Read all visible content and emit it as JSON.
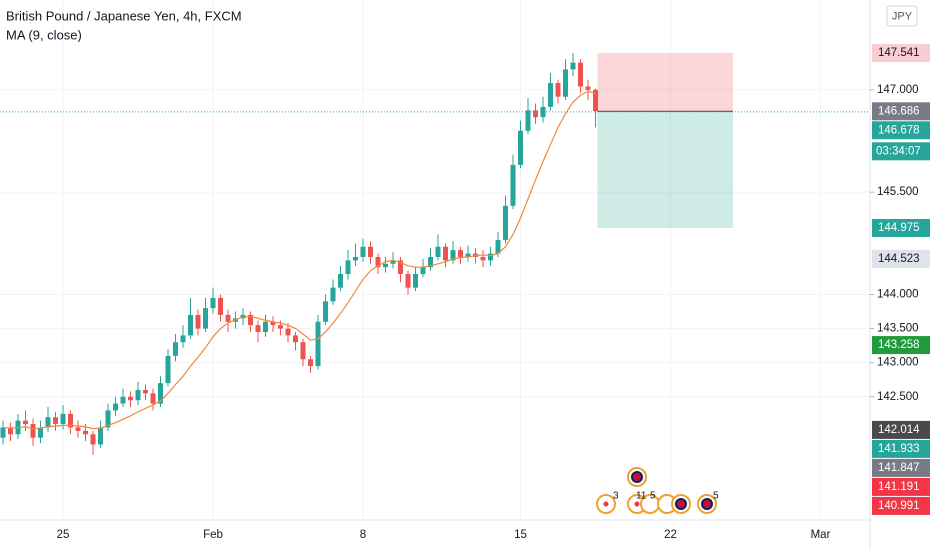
{
  "chart_data": {
    "type": "candlestick",
    "title": "British Pound / Japanese Yen, 4h, FXCM",
    "currency": "JPY",
    "up_color": "#26a69a",
    "down_color": "#ef5350",
    "grid": true,
    "ylim": [
      140.693,
      148.318
    ],
    "yticks": [
      {
        "value": 142.5,
        "label": "142.500"
      },
      {
        "value": 143,
        "label": "143.000"
      },
      {
        "value": 143.5,
        "label": "143.500"
      },
      {
        "value": 144,
        "label": "144.000"
      },
      {
        "value": 145.5,
        "label": "145.500"
      },
      {
        "value": 147,
        "label": "147.000"
      }
    ],
    "categories": [
      null,
      null,
      null,
      null,
      null,
      null,
      null,
      null,
      "25",
      null,
      null,
      null,
      null,
      null,
      null,
      null,
      null,
      null,
      null,
      null,
      null,
      null,
      null,
      null,
      null,
      null,
      null,
      null,
      "Feb",
      null,
      null,
      null,
      null,
      null,
      null,
      null,
      null,
      null,
      null,
      null,
      null,
      null,
      null,
      null,
      null,
      null,
      null,
      null,
      "8",
      null,
      null,
      null,
      null,
      null,
      null,
      null,
      null,
      null,
      null,
      null,
      null,
      null,
      null,
      null,
      null,
      null,
      null,
      null,
      null,
      "15",
      null,
      null,
      null,
      null,
      null,
      null,
      null,
      null,
      null,
      null,
      null,
      null,
      null,
      null,
      null,
      null,
      null,
      null,
      null,
      "22",
      null,
      null,
      null,
      null,
      null,
      null,
      null,
      null,
      null,
      null,
      null,
      null,
      null,
      null,
      null,
      null,
      null,
      null,
      null,
      "Mar",
      null,
      null,
      null,
      null,
      null,
      null
    ],
    "open": [
      141.9,
      142.05,
      141.95,
      142.15,
      142.1,
      141.9,
      142.05,
      142.2,
      142.1,
      142.25,
      142.05,
      142.0,
      141.95,
      141.8,
      142.05,
      142.3,
      142.4,
      142.5,
      142.45,
      142.6,
      142.55,
      142.4,
      142.7,
      143.1,
      143.3,
      143.4,
      143.7,
      143.5,
      143.8,
      143.95,
      143.7,
      143.6,
      143.65,
      143.7,
      143.55,
      143.45,
      143.6,
      143.55,
      143.5,
      143.4,
      143.3,
      143.05,
      142.95,
      143.6,
      143.9,
      144.1,
      144.3,
      144.5,
      144.55,
      144.7,
      144.55,
      144.4,
      144.45,
      144.5,
      144.3,
      144.1,
      144.3,
      144.4,
      144.55,
      144.7,
      144.5,
      144.65,
      144.55,
      144.6,
      144.55,
      144.5,
      144.6,
      144.8,
      145.3,
      145.9,
      146.4,
      146.7,
      146.6,
      146.75,
      147.1,
      146.9,
      147.3,
      147.4,
      147.05,
      147.0,
      null,
      null,
      null,
      null,
      null,
      null,
      null,
      null,
      null,
      null,
      null,
      null,
      null,
      null,
      null,
      null,
      null,
      null,
      null,
      null,
      null,
      null,
      null,
      null,
      null,
      null,
      null,
      null,
      null,
      null,
      null,
      null,
      null,
      null,
      null,
      null
    ],
    "high": [
      142.15,
      142.12,
      142.25,
      142.3,
      142.18,
      142.15,
      142.35,
      142.28,
      142.38,
      142.3,
      142.15,
      142.1,
      142.0,
      142.15,
      142.4,
      142.5,
      142.62,
      142.58,
      142.72,
      142.68,
      142.62,
      142.8,
      143.2,
      143.42,
      143.55,
      143.95,
      143.78,
      143.95,
      144.1,
      144.0,
      143.78,
      143.75,
      143.8,
      143.75,
      143.62,
      143.7,
      143.68,
      143.62,
      143.58,
      143.45,
      143.35,
      143.1,
      143.7,
      144.0,
      144.22,
      144.42,
      144.65,
      144.75,
      144.82,
      144.78,
      144.6,
      144.55,
      144.62,
      144.55,
      144.35,
      144.4,
      144.52,
      144.68,
      144.88,
      144.75,
      144.78,
      144.7,
      144.72,
      144.68,
      144.65,
      144.7,
      144.92,
      145.45,
      146.05,
      146.55,
      146.88,
      146.8,
      146.9,
      147.25,
      147.15,
      147.45,
      147.54,
      147.45,
      147.15,
      147.02,
      null,
      null,
      null,
      null,
      null,
      null,
      null,
      null,
      null,
      null,
      null,
      null,
      null,
      null,
      null,
      null,
      null,
      null,
      null,
      null,
      null,
      null,
      null,
      null,
      null,
      null,
      null,
      null,
      null,
      null,
      null,
      null,
      null,
      null,
      null,
      null
    ],
    "low": [
      141.8,
      141.85,
      141.88,
      142.0,
      141.78,
      141.82,
      141.98,
      142.0,
      142.02,
      141.95,
      141.9,
      141.85,
      141.65,
      141.75,
      142.0,
      142.22,
      142.35,
      142.35,
      142.38,
      142.45,
      142.3,
      142.35,
      142.65,
      143.02,
      143.22,
      143.35,
      143.4,
      143.45,
      143.72,
      143.6,
      143.45,
      143.5,
      143.55,
      143.45,
      143.3,
      143.38,
      143.45,
      143.4,
      143.3,
      143.18,
      142.95,
      142.85,
      142.9,
      143.55,
      143.85,
      144.05,
      144.22,
      144.42,
      144.48,
      144.45,
      144.3,
      144.32,
      144.38,
      144.18,
      144.0,
      144.05,
      144.25,
      144.35,
      144.5,
      144.4,
      144.45,
      144.45,
      144.48,
      144.45,
      144.4,
      144.42,
      144.55,
      144.75,
      145.25,
      145.85,
      146.35,
      146.5,
      146.52,
      146.7,
      146.8,
      146.85,
      147.2,
      146.95,
      146.85,
      146.45,
      null,
      null,
      null,
      null,
      null,
      null,
      null,
      null,
      null,
      null,
      null,
      null,
      null,
      null,
      null,
      null,
      null,
      null,
      null,
      null,
      null,
      null,
      null,
      null,
      null,
      null,
      null,
      null,
      null,
      null,
      null,
      null,
      null,
      null,
      null,
      null
    ],
    "close": [
      142.05,
      141.95,
      142.15,
      142.1,
      141.9,
      142.05,
      142.2,
      142.1,
      142.25,
      142.05,
      142.0,
      141.95,
      141.8,
      142.05,
      142.3,
      142.4,
      142.5,
      142.45,
      142.6,
      142.55,
      142.4,
      142.7,
      143.1,
      143.3,
      143.4,
      143.7,
      143.5,
      143.8,
      143.95,
      143.7,
      143.6,
      143.65,
      143.7,
      143.55,
      143.45,
      143.6,
      143.55,
      143.5,
      143.4,
      143.3,
      143.05,
      142.95,
      143.6,
      143.9,
      144.1,
      144.3,
      144.5,
      144.55,
      144.7,
      144.55,
      144.4,
      144.45,
      144.5,
      144.3,
      144.1,
      144.3,
      144.4,
      144.55,
      144.7,
      144.5,
      144.65,
      144.55,
      144.6,
      144.55,
      144.5,
      144.6,
      144.8,
      145.3,
      145.9,
      146.4,
      146.7,
      146.6,
      146.75,
      147.1,
      146.9,
      147.3,
      147.4,
      147.05,
      147.0,
      146.69,
      null,
      null,
      null,
      null,
      null,
      null,
      null,
      null,
      null,
      null,
      null,
      null,
      null,
      null,
      null,
      null,
      null,
      null,
      null,
      null,
      null,
      null,
      null,
      null,
      null,
      null,
      null,
      null,
      null,
      null,
      null,
      null,
      null,
      null,
      null,
      null
    ],
    "series": [
      {
        "name": "MA (9, close)",
        "color": "#f0883e",
        "values": [
          142.05,
          142.04,
          142.05,
          142.06,
          142.03,
          142.04,
          142.06,
          142.07,
          142.08,
          142.08,
          142.07,
          142.06,
          142.03,
          142.04,
          142.08,
          142.12,
          142.17,
          142.22,
          142.28,
          142.33,
          142.38,
          142.44,
          142.55,
          142.68,
          142.8,
          142.95,
          143.08,
          143.22,
          143.38,
          143.5,
          143.58,
          143.63,
          143.67,
          143.68,
          143.65,
          143.62,
          143.6,
          143.58,
          143.55,
          143.5,
          143.42,
          143.33,
          143.35,
          143.45,
          143.58,
          143.72,
          143.88,
          144.05,
          144.22,
          144.35,
          144.42,
          144.48,
          144.5,
          144.47,
          144.42,
          144.4,
          144.4,
          144.42,
          144.45,
          144.48,
          144.52,
          144.54,
          144.55,
          144.57,
          144.58,
          144.57,
          144.6,
          144.7,
          144.88,
          145.12,
          145.4,
          145.68,
          145.95,
          146.2,
          146.45,
          146.65,
          146.82,
          146.92,
          146.98,
          146.95,
          null,
          null,
          null,
          null,
          null,
          null,
          null,
          null,
          null,
          null,
          null,
          null,
          null,
          null,
          null,
          null,
          null,
          null,
          null,
          null,
          null,
          null,
          null,
          null,
          null,
          null,
          null,
          null,
          null,
          null,
          null,
          null,
          null,
          null,
          null,
          null
        ]
      }
    ],
    "price_labels": [
      {
        "value": 147.541,
        "color": "#f9cdd1",
        "text_color": "#131722"
      },
      {
        "value": 146.686,
        "color": "#787b86",
        "text_color": "#ffffff"
      },
      {
        "value": 146.678,
        "color": "#26a69a",
        "text_color": "#ffffff"
      },
      {
        "value": 144.975,
        "color": "#26a69a",
        "text_color": "#ffffff"
      },
      {
        "value": 144.523,
        "color": "#e0e3eb",
        "text_color": "#131722"
      },
      {
        "value": 143.258,
        "color": "#1e9c3e",
        "text_color": "#ffffff"
      },
      {
        "value": 142.014,
        "color": "#4a4a4a",
        "text_color": "#ffffff"
      },
      {
        "value": 141.933,
        "color": "#26a69a",
        "text_color": "#ffffff"
      },
      {
        "value": 141.847,
        "color": "#787b86",
        "text_color": "#ffffff"
      },
      {
        "value": 141.191,
        "color": "#f23645",
        "text_color": "#ffffff"
      },
      {
        "value": 140.991,
        "color": "#f23645",
        "text_color": "#ffffff"
      }
    ],
    "countdown": "03:34:07",
    "events": [
      "3",
      "11",
      "5",
      "5"
    ]
  }
}
